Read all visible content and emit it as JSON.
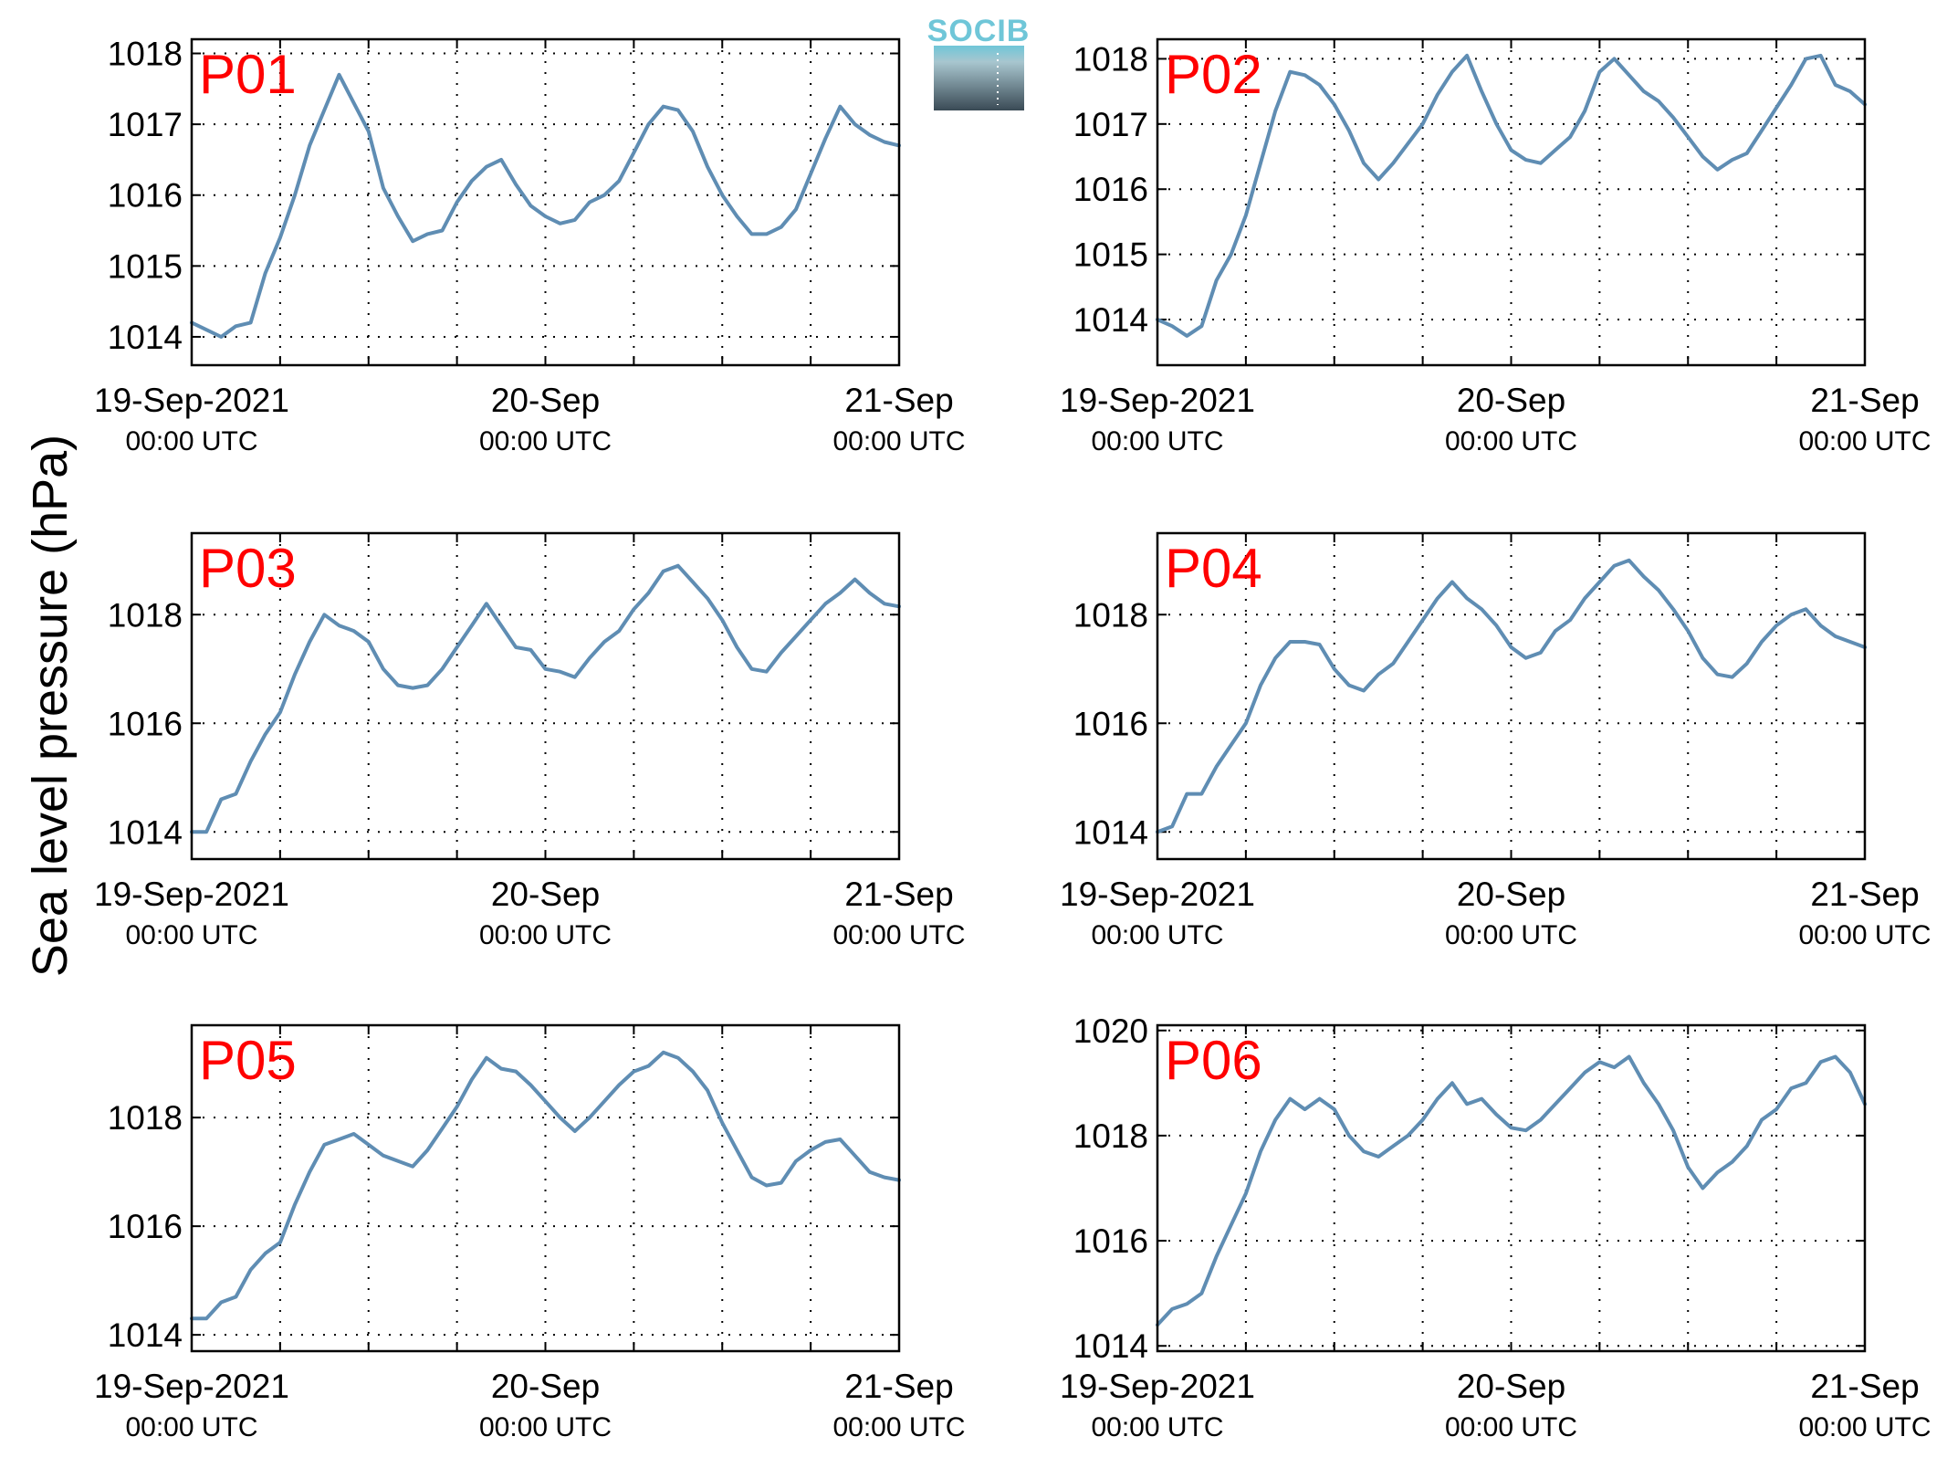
{
  "figure": {
    "ylabel": "Sea level pressure (hPa)",
    "line_color": "#5f8db3",
    "title_color": "#ff0000",
    "logo": {
      "text": "SOCIB",
      "top_color": "#6fc6d8",
      "bottom_color": "#3a4a55"
    },
    "x_tick_labels": [
      {
        "date": "19-Sep-2021",
        "time": "00:00 UTC"
      },
      {
        "date": "20-Sep",
        "time": "00:00 UTC"
      },
      {
        "date": "21-Sep",
        "time": "00:00 UTC"
      }
    ]
  },
  "chart_data": [
    {
      "type": "line",
      "title": "P01",
      "xlabel": "",
      "ylabel": "Sea level pressure (hPa)",
      "xlim": [
        "2021-09-19 00:00",
        "2021-09-21 00:00"
      ],
      "ylim": [
        1013.6,
        1018.2
      ],
      "yticks": [
        1014,
        1015,
        1016,
        1017,
        1018
      ],
      "grid": true,
      "x_unit": "hours since 19-Sep-2021 00:00 UTC",
      "series": [
        {
          "x": [
            0,
            1,
            2,
            3,
            4,
            5,
            6,
            7,
            8,
            9,
            10,
            11,
            12,
            13,
            14,
            15,
            16,
            17,
            18,
            19,
            20,
            21,
            22,
            23,
            24,
            25,
            26,
            27,
            28,
            29,
            30,
            31,
            32,
            33,
            34,
            35,
            36,
            37,
            38,
            39,
            40,
            41,
            42,
            43,
            44,
            45,
            46,
            47,
            48
          ],
          "y": [
            1014.2,
            1014.1,
            1014.0,
            1014.15,
            1014.2,
            1014.9,
            1015.4,
            1016.0,
            1016.7,
            1017.2,
            1017.7,
            1017.3,
            1016.9,
            1016.1,
            1015.7,
            1015.35,
            1015.45,
            1015.5,
            1015.9,
            1016.2,
            1016.4,
            1016.5,
            1016.15,
            1015.85,
            1015.7,
            1015.6,
            1015.65,
            1015.9,
            1016.0,
            1016.2,
            1016.6,
            1017.0,
            1017.25,
            1017.2,
            1016.9,
            1016.4,
            1016.0,
            1015.7,
            1015.45,
            1015.45,
            1015.55,
            1015.8,
            1016.3,
            1016.8,
            1017.25,
            1017.0,
            1016.85,
            1016.75,
            1016.7
          ]
        }
      ]
    },
    {
      "type": "line",
      "title": "P02",
      "xlabel": "",
      "ylabel": "Sea level pressure (hPa)",
      "xlim": [
        "2021-09-19 00:00",
        "2021-09-21 00:00"
      ],
      "ylim": [
        1013.3,
        1018.3
      ],
      "yticks": [
        1014,
        1015,
        1016,
        1017,
        1018
      ],
      "grid": true,
      "x_unit": "hours since 19-Sep-2021 00:00 UTC",
      "series": [
        {
          "x": [
            0,
            1,
            2,
            3,
            4,
            5,
            6,
            7,
            8,
            9,
            10,
            11,
            12,
            13,
            14,
            15,
            16,
            17,
            18,
            19,
            20,
            21,
            22,
            23,
            24,
            25,
            26,
            27,
            28,
            29,
            30,
            31,
            32,
            33,
            34,
            35,
            36,
            37,
            38,
            39,
            40,
            41,
            42,
            43,
            44,
            45,
            46,
            47,
            48
          ],
          "y": [
            1014.0,
            1013.9,
            1013.75,
            1013.9,
            1014.6,
            1015.0,
            1015.6,
            1016.4,
            1017.2,
            1017.8,
            1017.75,
            1017.6,
            1017.3,
            1016.9,
            1016.4,
            1016.15,
            1016.4,
            1016.7,
            1017.0,
            1017.45,
            1017.8,
            1018.05,
            1017.5,
            1017.0,
            1016.6,
            1016.45,
            1016.4,
            1016.6,
            1016.8,
            1017.2,
            1017.8,
            1018.0,
            1017.75,
            1017.5,
            1017.35,
            1017.1,
            1016.8,
            1016.5,
            1016.3,
            1016.45,
            1016.55,
            1016.9,
            1017.25,
            1017.6,
            1018.0,
            1018.05,
            1017.6,
            1017.5,
            1017.3
          ]
        }
      ]
    },
    {
      "type": "line",
      "title": "P03",
      "xlabel": "",
      "ylabel": "Sea level pressure (hPa)",
      "xlim": [
        "2021-09-19 00:00",
        "2021-09-21 00:00"
      ],
      "ylim": [
        1013.5,
        1019.5
      ],
      "yticks": [
        1014,
        1016,
        1018
      ],
      "grid": true,
      "x_unit": "hours since 19-Sep-2021 00:00 UTC",
      "series": [
        {
          "x": [
            0,
            1,
            2,
            3,
            4,
            5,
            6,
            7,
            8,
            9,
            10,
            11,
            12,
            13,
            14,
            15,
            16,
            17,
            18,
            19,
            20,
            21,
            22,
            23,
            24,
            25,
            26,
            27,
            28,
            29,
            30,
            31,
            32,
            33,
            34,
            35,
            36,
            37,
            38,
            39,
            40,
            41,
            42,
            43,
            44,
            45,
            46,
            47,
            48
          ],
          "y": [
            1014.0,
            1014.0,
            1014.6,
            1014.7,
            1015.3,
            1015.8,
            1016.2,
            1016.9,
            1017.5,
            1018.0,
            1017.8,
            1017.7,
            1017.5,
            1017.0,
            1016.7,
            1016.65,
            1016.7,
            1017.0,
            1017.4,
            1017.8,
            1018.2,
            1017.8,
            1017.4,
            1017.35,
            1017.0,
            1016.95,
            1016.85,
            1017.2,
            1017.5,
            1017.7,
            1018.1,
            1018.4,
            1018.8,
            1018.9,
            1018.6,
            1018.3,
            1017.9,
            1017.4,
            1017.0,
            1016.95,
            1017.3,
            1017.6,
            1017.9,
            1018.2,
            1018.4,
            1018.65,
            1018.4,
            1018.2,
            1018.15
          ]
        }
      ]
    },
    {
      "type": "line",
      "title": "P04",
      "xlabel": "",
      "ylabel": "Sea level pressure (hPa)",
      "xlim": [
        "2021-09-19 00:00",
        "2021-09-21 00:00"
      ],
      "ylim": [
        1013.5,
        1019.5
      ],
      "yticks": [
        1014,
        1016,
        1018
      ],
      "grid": true,
      "x_unit": "hours since 19-Sep-2021 00:00 UTC",
      "series": [
        {
          "x": [
            0,
            1,
            2,
            3,
            4,
            5,
            6,
            7,
            8,
            9,
            10,
            11,
            12,
            13,
            14,
            15,
            16,
            17,
            18,
            19,
            20,
            21,
            22,
            23,
            24,
            25,
            26,
            27,
            28,
            29,
            30,
            31,
            32,
            33,
            34,
            35,
            36,
            37,
            38,
            39,
            40,
            41,
            42,
            43,
            44,
            45,
            46,
            47,
            48
          ],
          "y": [
            1014.0,
            1014.1,
            1014.7,
            1014.7,
            1015.2,
            1015.6,
            1016.0,
            1016.7,
            1017.2,
            1017.5,
            1017.5,
            1017.45,
            1017.0,
            1016.7,
            1016.6,
            1016.9,
            1017.1,
            1017.5,
            1017.9,
            1018.3,
            1018.6,
            1018.3,
            1018.1,
            1017.8,
            1017.4,
            1017.2,
            1017.3,
            1017.7,
            1017.9,
            1018.3,
            1018.6,
            1018.9,
            1019.0,
            1018.7,
            1018.45,
            1018.1,
            1017.7,
            1017.2,
            1016.9,
            1016.85,
            1017.1,
            1017.5,
            1017.8,
            1018.0,
            1018.1,
            1017.8,
            1017.6,
            1017.5,
            1017.4
          ]
        }
      ]
    },
    {
      "type": "line",
      "title": "P05",
      "xlabel": "",
      "ylabel": "Sea level pressure (hPa)",
      "xlim": [
        "2021-09-19 00:00",
        "2021-09-21 00:00"
      ],
      "ylim": [
        1013.7,
        1019.7
      ],
      "yticks": [
        1014,
        1016,
        1018
      ],
      "grid": true,
      "x_unit": "hours since 19-Sep-2021 00:00 UTC",
      "series": [
        {
          "x": [
            0,
            1,
            2,
            3,
            4,
            5,
            6,
            7,
            8,
            9,
            10,
            11,
            12,
            13,
            14,
            15,
            16,
            17,
            18,
            19,
            20,
            21,
            22,
            23,
            24,
            25,
            26,
            27,
            28,
            29,
            30,
            31,
            32,
            33,
            34,
            35,
            36,
            37,
            38,
            39,
            40,
            41,
            42,
            43,
            44,
            45,
            46,
            47,
            48
          ],
          "y": [
            1014.3,
            1014.3,
            1014.6,
            1014.7,
            1015.2,
            1015.5,
            1015.7,
            1016.4,
            1017.0,
            1017.5,
            1017.6,
            1017.7,
            1017.5,
            1017.3,
            1017.2,
            1017.1,
            1017.4,
            1017.8,
            1018.2,
            1018.7,
            1019.1,
            1018.9,
            1018.85,
            1018.6,
            1018.3,
            1018.0,
            1017.75,
            1018.0,
            1018.3,
            1018.6,
            1018.85,
            1018.95,
            1019.2,
            1019.1,
            1018.85,
            1018.5,
            1017.9,
            1017.4,
            1016.9,
            1016.75,
            1016.8,
            1017.2,
            1017.4,
            1017.55,
            1017.6,
            1017.3,
            1017.0,
            1016.9,
            1016.85
          ]
        }
      ]
    },
    {
      "type": "line",
      "title": "P06",
      "xlabel": "",
      "ylabel": "Sea level pressure (hPa)",
      "xlim": [
        "2021-09-19 00:00",
        "2021-09-21 00:00"
      ],
      "ylim": [
        1013.9,
        1020.1
      ],
      "yticks": [
        1014,
        1016,
        1018,
        1020
      ],
      "grid": true,
      "x_unit": "hours since 19-Sep-2021 00:00 UTC",
      "series": [
        {
          "x": [
            0,
            1,
            2,
            3,
            4,
            5,
            6,
            7,
            8,
            9,
            10,
            11,
            12,
            13,
            14,
            15,
            16,
            17,
            18,
            19,
            20,
            21,
            22,
            23,
            24,
            25,
            26,
            27,
            28,
            29,
            30,
            31,
            32,
            33,
            34,
            35,
            36,
            37,
            38,
            39,
            40,
            41,
            42,
            43,
            44,
            45,
            46,
            47,
            48
          ],
          "y": [
            1014.4,
            1014.7,
            1014.8,
            1015.0,
            1015.7,
            1016.3,
            1016.9,
            1017.7,
            1018.3,
            1018.7,
            1018.5,
            1018.7,
            1018.5,
            1018.0,
            1017.7,
            1017.6,
            1017.8,
            1018.0,
            1018.3,
            1018.7,
            1019.0,
            1018.6,
            1018.7,
            1018.4,
            1018.15,
            1018.1,
            1018.3,
            1018.6,
            1018.9,
            1019.2,
            1019.4,
            1019.3,
            1019.5,
            1019.0,
            1018.6,
            1018.1,
            1017.4,
            1017.0,
            1017.3,
            1017.5,
            1017.8,
            1018.3,
            1018.5,
            1018.9,
            1019.0,
            1019.4,
            1019.5,
            1019.2,
            1018.6
          ]
        }
      ]
    }
  ]
}
